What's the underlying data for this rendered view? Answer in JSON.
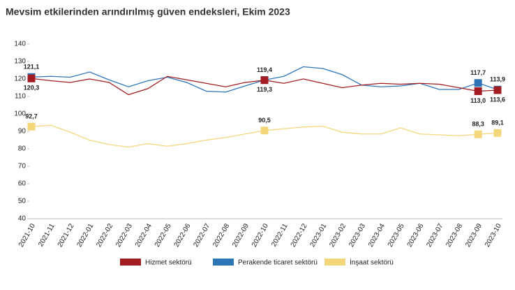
{
  "chart_data": {
    "type": "line",
    "title": "Mevsim etkilerinden arındırılmış güven endeksleri, Ekim 2023",
    "categories": [
      "2021-10",
      "2021-11",
      "2021-12",
      "2022-01",
      "2022-02",
      "2022-03",
      "2022-04",
      "2022-05",
      "2022-06",
      "2022-07",
      "2022-08",
      "2022-09",
      "2022-10",
      "2022-11",
      "2022-12",
      "2023-01",
      "2023-02",
      "2023-03",
      "2023-04",
      "2023-05",
      "2023-06",
      "2023-07",
      "2023-08",
      "2023-09",
      "2023-10"
    ],
    "ylim": [
      40,
      140
    ],
    "yticks": [
      40,
      50,
      60,
      70,
      80,
      90,
      100,
      110,
      120,
      130,
      140
    ],
    "series": [
      {
        "name": "Perakende ticaret sektörü",
        "color": "#2e75b6",
        "values": [
          121.1,
          121.5,
          121,
          124,
          119.5,
          115.5,
          119,
          121,
          118,
          113,
          112.5,
          116,
          119.4,
          121.5,
          127,
          126,
          122.5,
          116.5,
          115.5,
          116,
          117.5,
          114,
          114,
          117.7,
          113.9
        ],
        "value_labels": [
          "121,1",
          null,
          null,
          null,
          null,
          null,
          null,
          null,
          null,
          null,
          null,
          null,
          "119,4",
          null,
          null,
          null,
          null,
          null,
          null,
          null,
          null,
          null,
          null,
          "117,7",
          "113,9"
        ]
      },
      {
        "name": "Hizmet sektörü",
        "color": "#a31c22",
        "values": [
          120.3,
          119,
          118,
          120,
          118,
          111,
          114.5,
          121.5,
          119.5,
          117.5,
          115.5,
          118,
          119.3,
          117.5,
          120,
          117.5,
          115,
          116.5,
          117.5,
          117,
          117.5,
          117,
          115,
          113.0,
          113.6
        ],
        "value_labels": [
          "120,3",
          null,
          null,
          null,
          null,
          null,
          null,
          null,
          null,
          null,
          null,
          null,
          "119,3",
          null,
          null,
          null,
          null,
          null,
          null,
          null,
          null,
          null,
          null,
          "113,0",
          "113,6"
        ]
      },
      {
        "name": "İnşaat sektörü",
        "color": "#f5d77b",
        "values": [
          92.7,
          93.5,
          89.5,
          85,
          82.5,
          81,
          83,
          81.5,
          83,
          85,
          86.5,
          88.5,
          90.5,
          91.5,
          92.5,
          93,
          89.5,
          88.5,
          88.5,
          92,
          88.5,
          88,
          87.5,
          88.3,
          89.1
        ],
        "value_labels": [
          "92,7",
          null,
          null,
          null,
          null,
          null,
          null,
          null,
          null,
          null,
          null,
          null,
          "90,5",
          null,
          null,
          null,
          null,
          null,
          null,
          null,
          null,
          null,
          null,
          "88,3",
          "89,1"
        ]
      }
    ]
  }
}
